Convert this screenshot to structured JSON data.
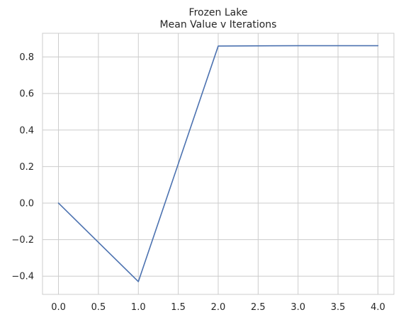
{
  "chart_data": {
    "type": "line",
    "title": "Frozen Lake",
    "subtitle": "Mean Value v Iterations",
    "xlabel": "",
    "ylabel": "",
    "xlim": [
      -0.2,
      4.2
    ],
    "ylim": [
      -0.5,
      0.93
    ],
    "x_ticks": [
      0.0,
      0.5,
      1.0,
      1.5,
      2.0,
      2.5,
      3.0,
      3.5,
      4.0
    ],
    "y_ticks": [
      -0.4,
      -0.2,
      0.0,
      0.2,
      0.4,
      0.6,
      0.8
    ],
    "grid": true,
    "series": [
      {
        "color": "#4c72b0",
        "x": [
          0,
          1,
          2,
          3,
          4
        ],
        "y": [
          0.0,
          -0.43,
          0.86,
          0.862,
          0.862
        ]
      }
    ]
  }
}
